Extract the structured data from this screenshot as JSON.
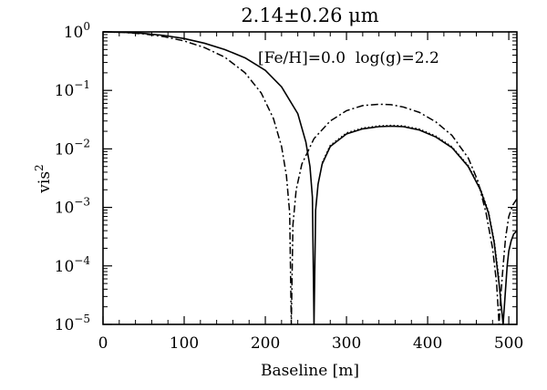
{
  "chart_data": {
    "type": "line",
    "title": "2.14±0.26 μm",
    "annotation": "[Fe/H]=0.0  log(g)=2.2",
    "xlabel": "Baseline [m]",
    "ylabel": "vis",
    "ylabel_superscript": "2",
    "xlim": [
      0,
      510
    ],
    "ylim": [
      1e-05,
      1
    ],
    "yscale": "log",
    "grid": false,
    "x_ticks": [
      {
        "value": 0,
        "label": "0"
      },
      {
        "value": 100,
        "label": "100"
      },
      {
        "value": 200,
        "label": "200"
      },
      {
        "value": 300,
        "label": "300"
      },
      {
        "value": 400,
        "label": "400"
      },
      {
        "value": 500,
        "label": "500"
      }
    ],
    "y_ticks": [
      {
        "value": 1,
        "base": "10",
        "exp": "0"
      },
      {
        "value": 0.1,
        "base": "10",
        "exp": "−1"
      },
      {
        "value": 0.01,
        "base": "10",
        "exp": "−2"
      },
      {
        "value": 0.001,
        "base": "10",
        "exp": "−3"
      },
      {
        "value": 0.0001,
        "base": "10",
        "exp": "−4"
      },
      {
        "value": 1e-05,
        "base": "10",
        "exp": "−5"
      }
    ],
    "series": [
      {
        "style": "solid",
        "x": [
          0,
          25,
          50,
          75,
          100,
          125,
          150,
          175,
          200,
          220,
          240,
          250,
          255,
          258,
          260,
          262,
          265,
          270,
          280,
          300,
          320,
          340,
          355,
          370,
          390,
          410,
          430,
          450,
          465,
          475,
          482,
          488,
          493,
          496,
          498,
          500,
          503,
          506,
          510
        ],
        "y": [
          1.0,
          0.985,
          0.94,
          0.87,
          0.77,
          0.64,
          0.5,
          0.36,
          0.22,
          0.115,
          0.04,
          0.013,
          0.005,
          0.0015,
          1e-05,
          0.0009,
          0.0025,
          0.0055,
          0.011,
          0.018,
          0.022,
          0.024,
          0.0245,
          0.024,
          0.021,
          0.016,
          0.0105,
          0.005,
          0.002,
          0.0008,
          0.00025,
          5e-05,
          1e-05,
          4e-05,
          0.0001,
          0.00018,
          0.00027,
          0.00035,
          0.0004
        ]
      },
      {
        "style": "dotted",
        "x": [
          270,
          280,
          300,
          320,
          340,
          355,
          370,
          390,
          410,
          430,
          450,
          465,
          475,
          482,
          488
        ],
        "y": [
          0.0058,
          0.0115,
          0.0188,
          0.0228,
          0.0248,
          0.0253,
          0.0248,
          0.0218,
          0.0166,
          0.0109,
          0.0052,
          0.0021,
          0.00085,
          0.00027,
          6e-05
        ]
      },
      {
        "style": "dashdot",
        "x": [
          0,
          25,
          50,
          75,
          100,
          125,
          150,
          175,
          195,
          210,
          220,
          226,
          230,
          232,
          234,
          238,
          245,
          260,
          280,
          300,
          320,
          340,
          355,
          370,
          390,
          410,
          430,
          450,
          462,
          472,
          480,
          485,
          488,
          490,
          493,
          496,
          500,
          505,
          510
        ],
        "y": [
          1.0,
          0.98,
          0.925,
          0.83,
          0.7,
          0.54,
          0.37,
          0.2,
          0.09,
          0.033,
          0.011,
          0.0035,
          0.0008,
          1e-05,
          0.0005,
          0.002,
          0.0055,
          0.015,
          0.03,
          0.045,
          0.055,
          0.058,
          0.057,
          0.052,
          0.042,
          0.029,
          0.017,
          0.007,
          0.0028,
          0.0008,
          0.0002,
          5e-05,
          1e-05,
          3e-05,
          0.0001,
          0.0003,
          0.0007,
          0.0011,
          0.0014
        ]
      }
    ]
  }
}
